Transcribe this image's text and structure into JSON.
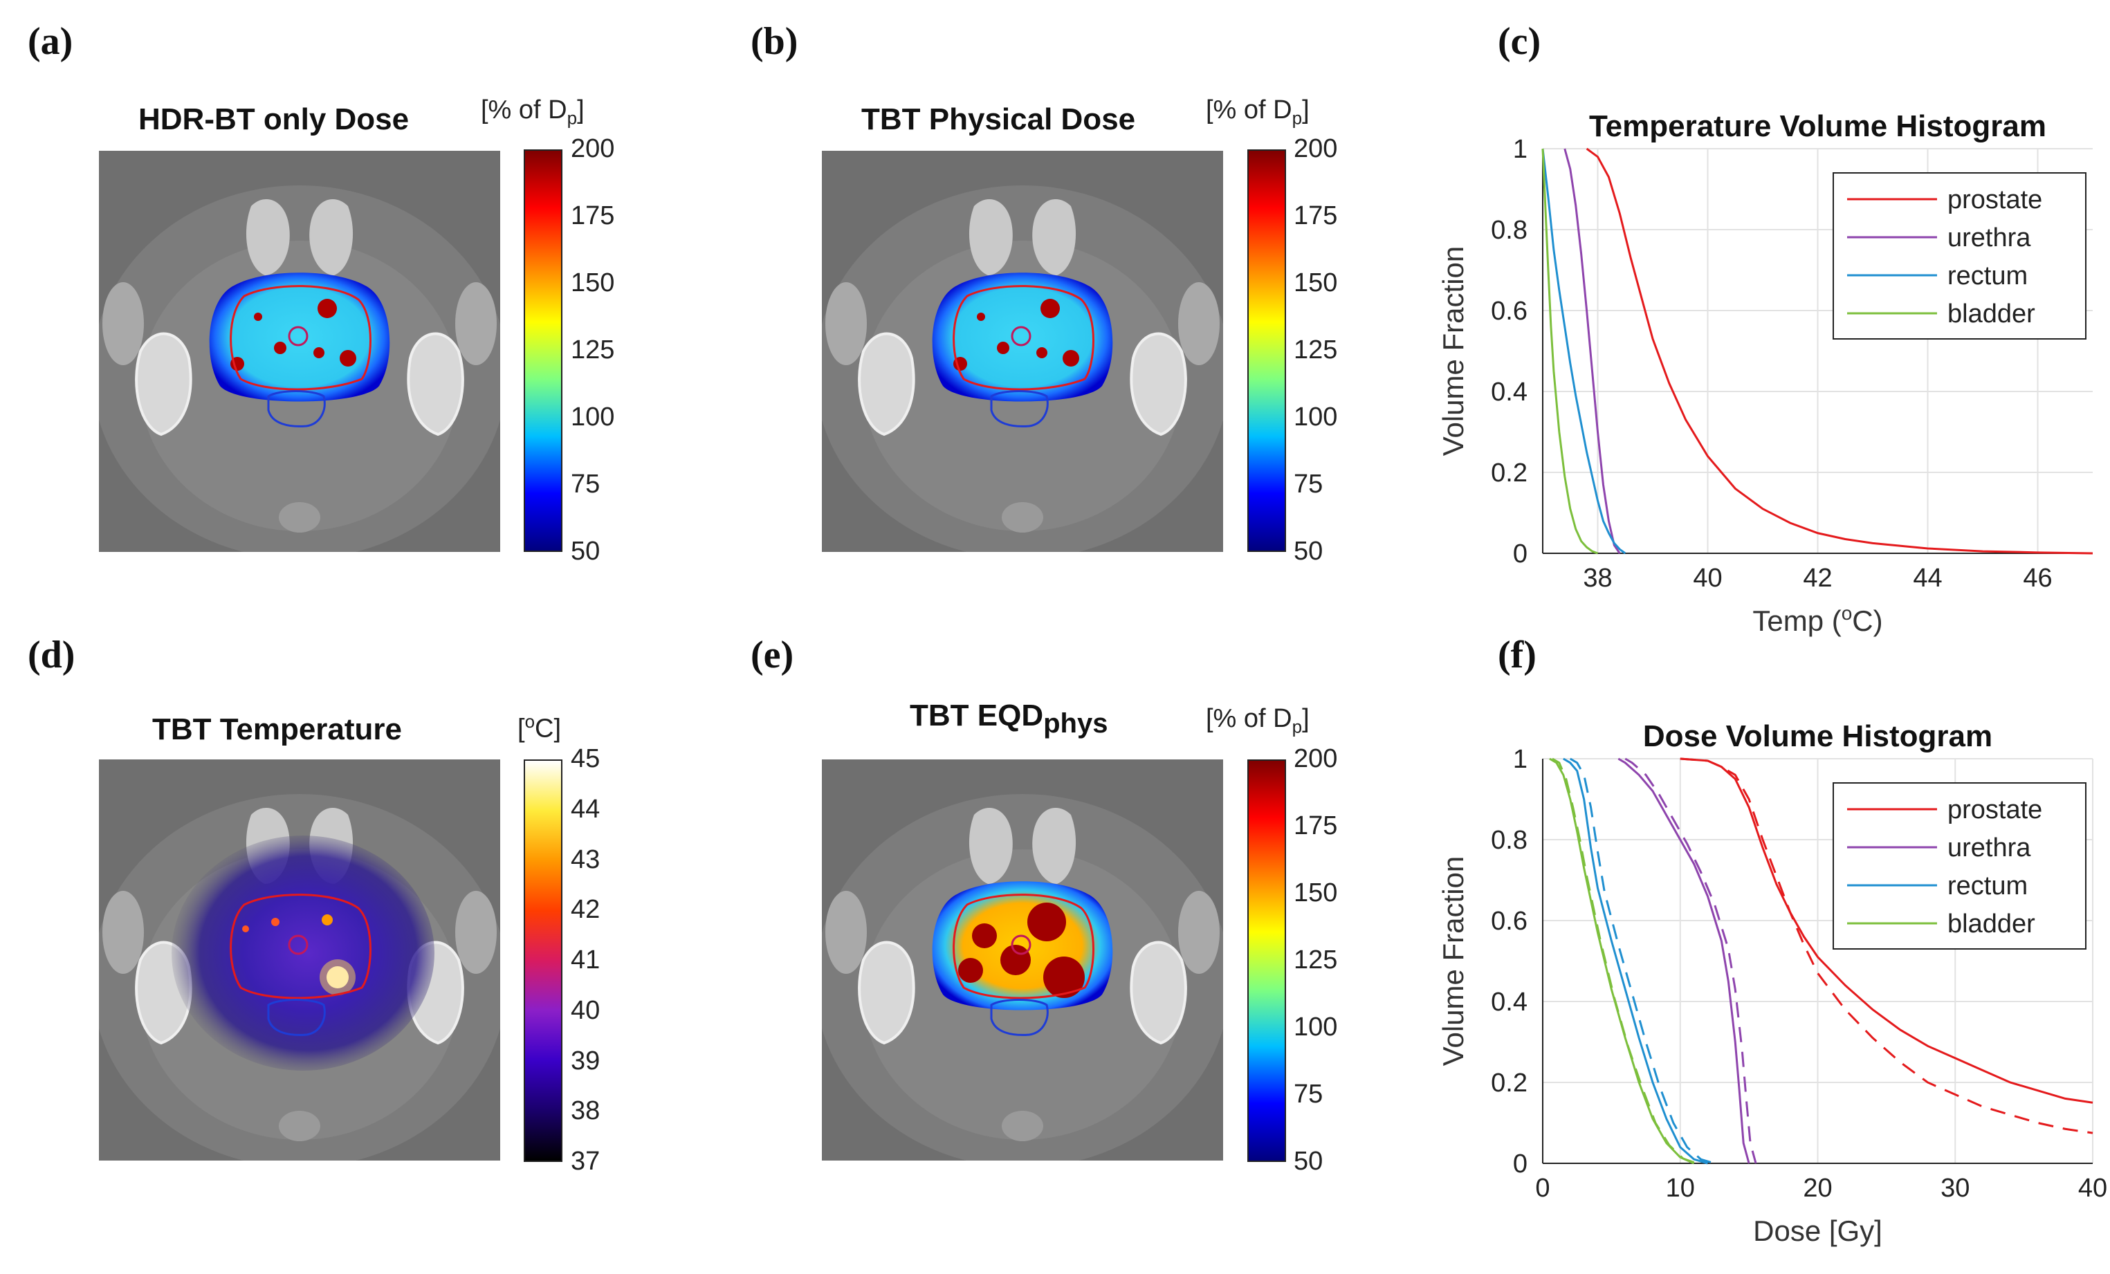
{
  "panel_labels": [
    "(a)",
    "(b)",
    "(c)",
    "(d)",
    "(e)",
    "(f)"
  ],
  "panels": {
    "a": {
      "title": "HDR-BT only Dose",
      "unit_pre": "[% of D",
      "unit_sub": "p",
      "unit_post": "]",
      "colorbar_ticks": [
        "200",
        "175",
        "150",
        "125",
        "100",
        "75",
        "50"
      ]
    },
    "b": {
      "title": "TBT Physical Dose",
      "unit_pre": "[% of D",
      "unit_sub": "p",
      "unit_post": "]",
      "colorbar_ticks": [
        "200",
        "175",
        "150",
        "125",
        "100",
        "75",
        "50"
      ]
    },
    "d": {
      "title": "TBT Temperature",
      "unit_pre": "[",
      "unit_sup": "o",
      "unit_post": "C]",
      "colorbar_ticks": [
        "45",
        "44",
        "43",
        "42",
        "41",
        "40",
        "39",
        "38",
        "37"
      ]
    },
    "e": {
      "title_main": "TBT EQD",
      "title_sub": "phys",
      "unit_pre": "[% of D",
      "unit_sub": "p",
      "unit_post": "]",
      "colorbar_ticks": [
        "200",
        "175",
        "150",
        "125",
        "100",
        "75",
        "50"
      ]
    }
  },
  "colors": {
    "prostate": "#e41a1c",
    "urethra": "#8e44ad",
    "rectum": "#1f8fd0",
    "bladder": "#7cbf3c",
    "ct_bg": "#6f6f6f",
    "grid": "#dedede"
  },
  "chart_data": [
    {
      "type": "line",
      "title": "Temperature Volume Histogram",
      "xlabel_pre": "Temp (",
      "xlabel_sup": "o",
      "xlabel_post": "C)",
      "ylabel": "Volume Fraction",
      "xlim": [
        37,
        47
      ],
      "ylim": [
        0,
        1
      ],
      "xticks": [
        38,
        40,
        42,
        44,
        46
      ],
      "yticks": [
        0,
        0.2,
        0.4,
        0.6,
        0.8,
        1
      ],
      "legend_position": "top-right",
      "series": [
        {
          "name": "prostate",
          "color": "#e41a1c",
          "x": [
            37.8,
            38.0,
            38.2,
            38.4,
            38.6,
            38.8,
            39.0,
            39.3,
            39.6,
            40.0,
            40.5,
            41.0,
            41.5,
            42.0,
            42.5,
            43.0,
            44.0,
            45.0,
            46.0,
            47.0
          ],
          "y": [
            1,
            0.98,
            0.93,
            0.84,
            0.73,
            0.63,
            0.53,
            0.42,
            0.33,
            0.24,
            0.16,
            0.11,
            0.075,
            0.05,
            0.035,
            0.025,
            0.012,
            0.005,
            0.002,
            0
          ]
        },
        {
          "name": "urethra",
          "color": "#8e44ad",
          "x": [
            37.4,
            37.5,
            37.6,
            37.7,
            37.8,
            37.9,
            38.0,
            38.1,
            38.2,
            38.3,
            38.4
          ],
          "y": [
            1,
            0.95,
            0.86,
            0.74,
            0.6,
            0.45,
            0.3,
            0.17,
            0.08,
            0.02,
            0
          ]
        },
        {
          "name": "rectum",
          "color": "#1f8fd0",
          "x": [
            37.0,
            37.1,
            37.2,
            37.3,
            37.4,
            37.5,
            37.6,
            37.7,
            37.8,
            37.9,
            38.0,
            38.1,
            38.2,
            38.3,
            38.4,
            38.5
          ],
          "y": [
            1,
            0.88,
            0.75,
            0.65,
            0.56,
            0.47,
            0.39,
            0.32,
            0.25,
            0.19,
            0.13,
            0.08,
            0.05,
            0.025,
            0.01,
            0
          ]
        },
        {
          "name": "bladder",
          "color": "#7cbf3c",
          "x": [
            37.0,
            37.05,
            37.1,
            37.15,
            37.2,
            37.3,
            37.4,
            37.5,
            37.6,
            37.7,
            37.8,
            37.9,
            38.0
          ],
          "y": [
            1,
            0.85,
            0.7,
            0.56,
            0.45,
            0.3,
            0.19,
            0.11,
            0.06,
            0.03,
            0.015,
            0.005,
            0
          ]
        }
      ]
    },
    {
      "type": "line",
      "title": "Dose Volume Histogram",
      "xlabel": "Dose [Gy]",
      "ylabel": "Volume Fraction",
      "xlim": [
        0,
        40
      ],
      "ylim": [
        0,
        1
      ],
      "xticks": [
        0,
        10,
        20,
        30,
        40
      ],
      "yticks": [
        0,
        0.2,
        0.4,
        0.6,
        0.8,
        1
      ],
      "legend_position": "top-right",
      "legend_note": "solid and dashed line pairs per structure",
      "series": [
        {
          "name": "prostate",
          "style": "solid",
          "color": "#e41a1c",
          "x": [
            10,
            12,
            13,
            14,
            15,
            16,
            17,
            18,
            19,
            20,
            22,
            24,
            26,
            28,
            30,
            32,
            34,
            36,
            38,
            40
          ],
          "y": [
            1,
            0.995,
            0.98,
            0.95,
            0.88,
            0.78,
            0.69,
            0.62,
            0.56,
            0.51,
            0.44,
            0.38,
            0.33,
            0.29,
            0.26,
            0.23,
            0.2,
            0.18,
            0.16,
            0.15
          ]
        },
        {
          "name": "prostate",
          "style": "dashed",
          "color": "#e41a1c",
          "x": [
            10,
            12,
            13,
            14,
            15,
            16,
            17,
            18,
            19,
            20,
            22,
            24,
            26,
            28,
            30,
            32,
            34,
            36,
            38,
            40
          ],
          "y": [
            1,
            0.995,
            0.98,
            0.96,
            0.9,
            0.8,
            0.71,
            0.62,
            0.54,
            0.47,
            0.38,
            0.31,
            0.25,
            0.2,
            0.17,
            0.14,
            0.12,
            0.1,
            0.085,
            0.075
          ]
        },
        {
          "name": "urethra",
          "style": "solid",
          "color": "#8e44ad",
          "x": [
            5.5,
            6.0,
            7.0,
            8.0,
            9.0,
            10.0,
            11.0,
            12.0,
            13.0,
            13.5,
            14.0,
            14.3,
            14.6,
            15.0
          ],
          "y": [
            1,
            0.99,
            0.96,
            0.92,
            0.86,
            0.8,
            0.74,
            0.66,
            0.55,
            0.45,
            0.3,
            0.18,
            0.05,
            0
          ]
        },
        {
          "name": "urethra",
          "style": "dashed",
          "color": "#8e44ad",
          "x": [
            6.0,
            6.5,
            7.5,
            8.5,
            9.5,
            10.5,
            11.5,
            12.5,
            13.5,
            14.0,
            14.5,
            14.8,
            15.1,
            15.5
          ],
          "y": [
            1,
            0.99,
            0.96,
            0.91,
            0.85,
            0.79,
            0.72,
            0.64,
            0.53,
            0.43,
            0.28,
            0.16,
            0.05,
            0
          ]
        },
        {
          "name": "rectum",
          "style": "solid",
          "color": "#1f8fd0",
          "x": [
            1.5,
            2.0,
            2.5,
            3.0,
            3.5,
            4.0,
            5.0,
            6.0,
            7.0,
            8.0,
            9.0,
            10.0,
            11.0,
            12.0
          ],
          "y": [
            1,
            0.99,
            0.97,
            0.9,
            0.78,
            0.68,
            0.55,
            0.43,
            0.31,
            0.2,
            0.11,
            0.04,
            0.01,
            0
          ]
        },
        {
          "name": "rectum",
          "style": "dashed",
          "color": "#1f8fd0",
          "x": [
            2.0,
            2.5,
            3.0,
            3.5,
            4.0,
            4.5,
            5.5,
            6.5,
            7.5,
            8.5,
            9.5,
            10.5,
            11.5,
            12.5
          ],
          "y": [
            1,
            0.99,
            0.96,
            0.88,
            0.77,
            0.67,
            0.54,
            0.42,
            0.3,
            0.19,
            0.1,
            0.04,
            0.01,
            0
          ]
        },
        {
          "name": "bladder",
          "style": "solid",
          "color": "#7cbf3c",
          "x": [
            0.5,
            1.0,
            1.5,
            2.0,
            2.5,
            3.0,
            4.0,
            5.0,
            6.0,
            7.0,
            8.0,
            9.0,
            10.0,
            11.0
          ],
          "y": [
            1,
            0.99,
            0.96,
            0.9,
            0.82,
            0.73,
            0.57,
            0.43,
            0.31,
            0.2,
            0.11,
            0.05,
            0.015,
            0
          ]
        },
        {
          "name": "bladder",
          "style": "dashed",
          "color": "#7cbf3c",
          "x": [
            0.7,
            1.2,
            1.7,
            2.2,
            2.7,
            3.2,
            4.2,
            5.2,
            6.2,
            7.2,
            8.2,
            9.2,
            10.2,
            11.2
          ],
          "y": [
            1,
            0.99,
            0.95,
            0.88,
            0.8,
            0.71,
            0.55,
            0.41,
            0.29,
            0.19,
            0.1,
            0.045,
            0.012,
            0
          ]
        }
      ],
      "legend_entries": [
        "prostate",
        "urethra",
        "rectum",
        "bladder"
      ]
    }
  ]
}
